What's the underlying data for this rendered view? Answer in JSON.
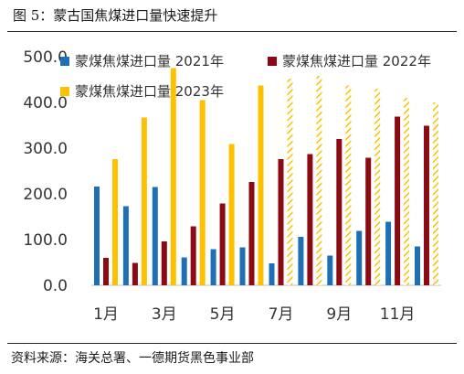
{
  "figure": {
    "title": "图 5：蒙古国焦煤进口量快速提升",
    "source": "资料来源：海关总署、一德期货黑色事业部"
  },
  "chart_data": {
    "type": "bar",
    "categories": [
      "1月",
      "2月",
      "3月",
      "4月",
      "5月",
      "6月",
      "7月",
      "8月",
      "9月",
      "10月",
      "11月",
      "12月"
    ],
    "x_tick_labels": [
      "1月",
      "",
      "3月",
      "",
      "5月",
      "",
      "7月",
      "",
      "9月",
      "",
      "11月",
      ""
    ],
    "ylim": [
      0,
      500
    ],
    "y_ticks": [
      "0.0",
      "100.0",
      "200.0",
      "300.0",
      "400.0",
      "500.0"
    ],
    "grid": false,
    "legend_position": "top",
    "series": [
      {
        "name": "蒙煤焦煤进口量 2021年",
        "color": "#1f6fb5",
        "values": [
          216,
          173,
          215,
          61,
          79,
          83,
          48,
          106,
          65,
          119,
          139,
          85
        ]
      },
      {
        "name": "蒙煤焦煤进口量 2022年",
        "color": "#8b0a14",
        "values": [
          60,
          49,
          96,
          129,
          179,
          226,
          276,
          287,
          320,
          279,
          369,
          349
        ]
      },
      {
        "name": "蒙煤焦煤进口量 2023年",
        "color": "#ffc000",
        "values": [
          276,
          367,
          475,
          405,
          309,
          437,
          452,
          458,
          437,
          430,
          410,
          400
        ],
        "estimated_from_month": 7
      }
    ]
  }
}
